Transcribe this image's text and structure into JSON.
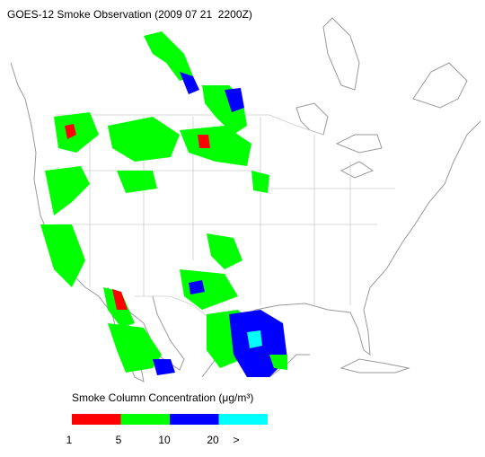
{
  "title": "GOES-12 Smoke Observation (2009 07 21  2200Z)",
  "legend": {
    "title": "Smoke Column Concentration (μg/m³)",
    "colors": [
      "#ff0000",
      "#00ff00",
      "#0000ff",
      "#00ffff"
    ],
    "ticks": [
      1,
      5,
      10,
      20
    ],
    "overflow_label": ">"
  }
}
